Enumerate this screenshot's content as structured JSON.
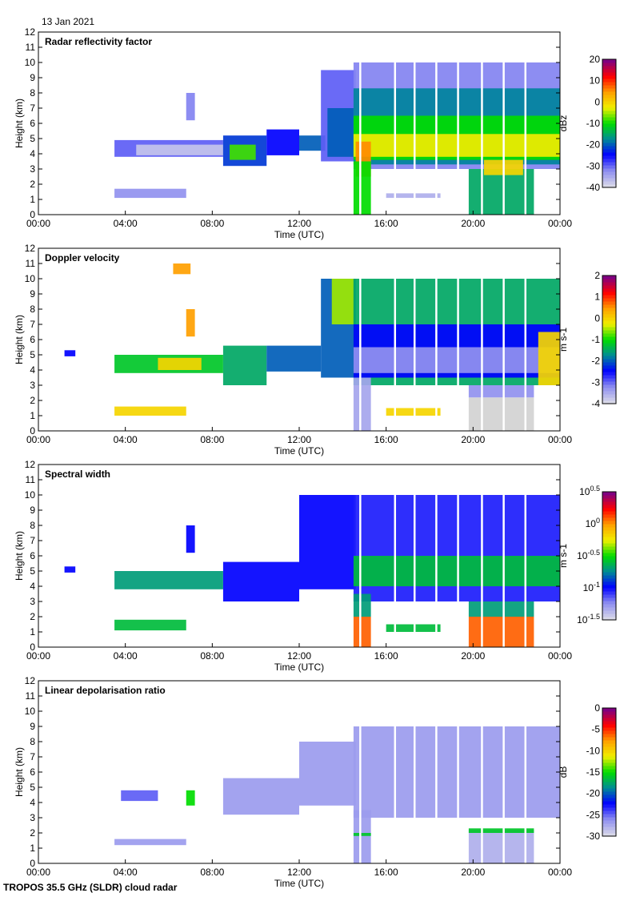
{
  "date": "13 Jan 2021",
  "footer": "TROPOS 35.5 GHz (SLDR) cloud radar",
  "colormap": [
    "#d8d8e8",
    "#8c8cf0",
    "#0000ff",
    "#008c96",
    "#00dc00",
    "#f0f000",
    "#ffa000",
    "#ff0000",
    "#800080"
  ],
  "missing_color": "#d3d3d3",
  "chart_data": [
    {
      "type": "heatmap",
      "title": "Radar reflectivity factor",
      "xlabel": "Time (UTC)",
      "ylabel": "Height (km)",
      "xlim": [
        0,
        24
      ],
      "ylim": [
        0,
        12
      ],
      "xticks": [
        "00:00",
        "04:00",
        "08:00",
        "12:00",
        "16:00",
        "20:00",
        "00:00"
      ],
      "yticks": [
        "0",
        "1",
        "2",
        "3",
        "4",
        "5",
        "6",
        "7",
        "8",
        "9",
        "10",
        "11",
        "12"
      ],
      "colorbar": {
        "label": "dBz",
        "range": [
          -40,
          20
        ],
        "ticks": [
          "20",
          "10",
          "0",
          "-10",
          "-20",
          "-30",
          "-40"
        ]
      },
      "data_gaps_hours": [
        14.8,
        16.4,
        17.3,
        18.3,
        19.3,
        20.4,
        21.4,
        22.4
      ],
      "regions": [
        [
          3.5,
          6.8,
          1.1,
          1.7,
          -33
        ],
        [
          3.5,
          8.5,
          3.8,
          4.9,
          -30
        ],
        [
          4.5,
          8.5,
          3.9,
          4.6,
          -38
        ],
        [
          6.8,
          7.2,
          6.2,
          8,
          -32
        ],
        [
          8.5,
          10.5,
          3.2,
          5.2,
          -22
        ],
        [
          8.8,
          10,
          3.6,
          4.6,
          -8
        ],
        [
          10.5,
          12,
          3.9,
          5.6,
          -25
        ],
        [
          12,
          13.2,
          4.2,
          5.2,
          -20
        ],
        [
          13,
          14.6,
          3.5,
          9.5,
          -30
        ],
        [
          13.3,
          14.6,
          3.8,
          7,
          -20
        ],
        [
          14.5,
          24,
          3,
          10,
          -32
        ],
        [
          14.5,
          24,
          3.3,
          8.3,
          -18
        ],
        [
          14.5,
          24,
          3.6,
          6.5,
          -10
        ],
        [
          14.5,
          24,
          3.8,
          5.3,
          -2
        ],
        [
          14.6,
          15.3,
          2.5,
          4.8,
          6
        ],
        [
          14.5,
          15.3,
          0,
          3.5,
          -10
        ],
        [
          16,
          18.5,
          1.1,
          1.4,
          -36
        ],
        [
          19.8,
          22.8,
          0,
          3,
          -15
        ],
        [
          20.5,
          22.3,
          2.6,
          3.6,
          0
        ]
      ]
    },
    {
      "type": "heatmap",
      "title": "Doppler velocity",
      "xlabel": "Time (UTC)",
      "ylabel": "Height (km)",
      "xlim": [
        0,
        24
      ],
      "ylim": [
        0,
        12
      ],
      "xticks": [
        "00:00",
        "04:00",
        "08:00",
        "12:00",
        "16:00",
        "20:00",
        "00:00"
      ],
      "yticks": [
        "0",
        "1",
        "2",
        "3",
        "4",
        "5",
        "6",
        "7",
        "8",
        "9",
        "10",
        "11",
        "12"
      ],
      "colorbar": {
        "label": "m s-1",
        "range": [
          -4,
          2
        ],
        "ticks": [
          "2",
          "1",
          "0",
          "-1",
          "-2",
          "-3",
          "-4"
        ]
      },
      "data_gaps_hours": [
        14.8,
        16.4,
        17.3,
        18.3,
        19.3,
        20.4,
        21.4,
        22.4
      ],
      "regions": [
        [
          1.2,
          1.7,
          4.9,
          5.3,
          -2.5
        ],
        [
          3.5,
          6.8,
          1,
          1.6,
          0
        ],
        [
          3.5,
          8.5,
          3.8,
          5,
          -1.2
        ],
        [
          5.5,
          7.5,
          4,
          4.8,
          0
        ],
        [
          6.2,
          7,
          10.3,
          11,
          0.5
        ],
        [
          6.8,
          7.2,
          6.2,
          8,
          0.5
        ],
        [
          8.5,
          10.5,
          3,
          5.6,
          -1.5
        ],
        [
          10.5,
          13,
          3.9,
          5.6,
          -2
        ],
        [
          13,
          14.6,
          3.5,
          10,
          -2
        ],
        [
          13.5,
          14.5,
          7,
          10,
          -0.5
        ],
        [
          14.5,
          24,
          3,
          10,
          -1.5
        ],
        [
          14.5,
          24,
          3.5,
          7,
          -2.5
        ],
        [
          14.5,
          24,
          3.8,
          5.5,
          -3.3
        ],
        [
          14.5,
          15.3,
          0,
          3.5,
          -3.5
        ],
        [
          16,
          18.5,
          1,
          1.5,
          0
        ],
        [
          19.8,
          22.8,
          0,
          2.2,
          -9
        ],
        [
          19.8,
          22.8,
          2.2,
          3,
          -3.3
        ],
        [
          23,
          24,
          3,
          6.5,
          0
        ]
      ]
    },
    {
      "type": "heatmap",
      "title": "Spectral width",
      "xlabel": "Time (UTC)",
      "ylabel": "Height (km)",
      "xlim": [
        0,
        24
      ],
      "ylim": [
        0,
        12
      ],
      "xticks": [
        "00:00",
        "04:00",
        "08:00",
        "12:00",
        "16:00",
        "20:00",
        "00:00"
      ],
      "yticks": [
        "0",
        "1",
        "2",
        "3",
        "4",
        "5",
        "6",
        "7",
        "8",
        "9",
        "10",
        "11",
        "12"
      ],
      "colorbar": {
        "label": "m s-1",
        "scale": "log",
        "range": [
          -1.5,
          0.5
        ],
        "ticks": [
          "10^0.5",
          "10^0",
          "10^-0.5",
          "10^-1",
          "10^-1.5"
        ]
      },
      "data_gaps_hours": [
        14.8,
        16.4,
        17.3,
        18.3,
        19.3,
        20.4,
        21.4,
        22.4
      ],
      "regions": [
        [
          1.2,
          1.7,
          4.9,
          5.3,
          -1
        ],
        [
          3.5,
          6.8,
          1.1,
          1.8,
          -0.6
        ],
        [
          3.5,
          8.5,
          3.8,
          5,
          -0.7
        ],
        [
          6.8,
          7.2,
          6.2,
          8,
          -1
        ],
        [
          8.5,
          12,
          3,
          5.6,
          -1
        ],
        [
          12,
          14.6,
          3.8,
          10,
          -1
        ],
        [
          14.5,
          24,
          3,
          10,
          -1.05
        ],
        [
          14.5,
          24,
          4,
          6,
          -0.6
        ],
        [
          14.5,
          15.3,
          0,
          2,
          0.1
        ],
        [
          14.5,
          15.3,
          2,
          3.5,
          -0.7
        ],
        [
          16,
          18.5,
          1,
          1.5,
          -0.6
        ],
        [
          19.8,
          22.8,
          0,
          2,
          0.1
        ],
        [
          19.8,
          22.8,
          2,
          3,
          -0.7
        ]
      ]
    },
    {
      "type": "heatmap",
      "title": "Linear depolarisation ratio",
      "xlabel": "Time (UTC)",
      "ylabel": "Height (km)",
      "xlim": [
        0,
        24
      ],
      "ylim": [
        0,
        12
      ],
      "xticks": [
        "00:00",
        "04:00",
        "08:00",
        "12:00",
        "16:00",
        "20:00",
        "00:00"
      ],
      "yticks": [
        "0",
        "1",
        "2",
        "3",
        "4",
        "5",
        "6",
        "7",
        "8",
        "9",
        "10",
        "11",
        "12"
      ],
      "colorbar": {
        "label": "dB",
        "range": [
          -30,
          0
        ],
        "ticks": [
          "0",
          "-5",
          "-10",
          "-15",
          "-20",
          "-25",
          "-30"
        ]
      },
      "data_gaps_hours": [
        14.8,
        16.4,
        17.3,
        18.3,
        19.3,
        20.4,
        21.4,
        22.4
      ],
      "regions": [
        [
          3.5,
          6.8,
          1.2,
          1.6,
          -27
        ],
        [
          3.8,
          5.5,
          4.1,
          4.8,
          -25
        ],
        [
          6.8,
          7.2,
          3.8,
          4.8,
          -15
        ],
        [
          8.5,
          12,
          3.2,
          5.6,
          -27
        ],
        [
          12,
          14.6,
          3.8,
          8,
          -27
        ],
        [
          14.5,
          24,
          3,
          9,
          -27
        ],
        [
          14.5,
          15.3,
          0,
          3.5,
          -27
        ],
        [
          14.5,
          15.3,
          1.8,
          2,
          -16
        ],
        [
          19.8,
          22.8,
          0,
          2.2,
          -28
        ],
        [
          19.8,
          22.8,
          2,
          2.3,
          -16
        ]
      ]
    }
  ]
}
